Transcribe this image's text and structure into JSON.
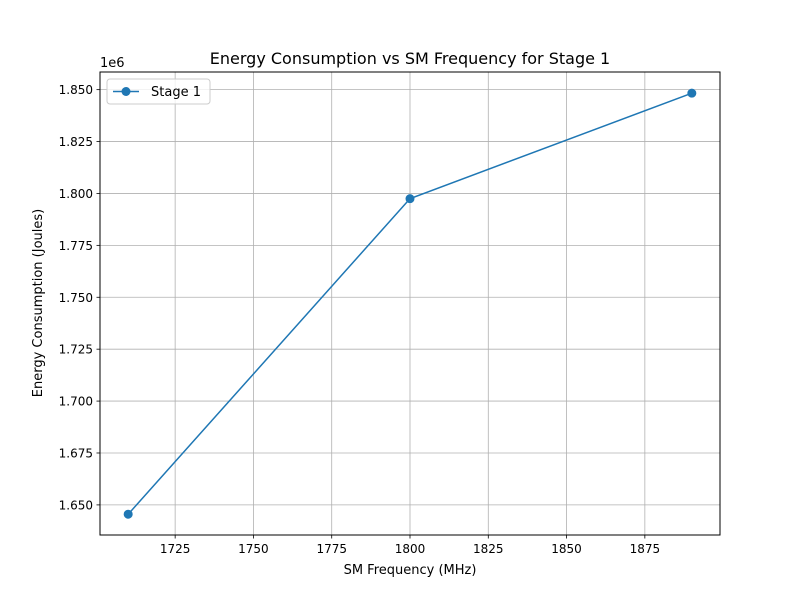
{
  "chart_data": {
    "type": "line",
    "title": "Energy Consumption vs SM Frequency for Stage 1",
    "xlabel": "SM Frequency (MHz)",
    "ylabel": "Energy Consumption (Joules)",
    "y_offset_label": "1e6",
    "y_multiplier": 1000000,
    "xlim": [
      1701,
      1899
    ],
    "ylim": [
      1.6355,
      1.8585
    ],
    "x_ticks": [
      1725,
      1750,
      1775,
      1800,
      1825,
      1850,
      1875
    ],
    "x_tick_labels": [
      "1725",
      "1750",
      "1775",
      "1800",
      "1825",
      "1850",
      "1875"
    ],
    "y_ticks": [
      1.65,
      1.675,
      1.7,
      1.725,
      1.75,
      1.775,
      1.8,
      1.825,
      1.85
    ],
    "y_tick_labels": [
      "1.650",
      "1.675",
      "1.700",
      "1.725",
      "1.750",
      "1.775",
      "1.800",
      "1.825",
      "1.850"
    ],
    "grid": true,
    "legend_position": "top-left",
    "series": [
      {
        "name": "Stage 1",
        "color": "#1f77b4",
        "marker": "circle",
        "x": [
          1710,
          1800,
          1890
        ],
        "y": [
          1.6455,
          1.7975,
          1.8483
        ]
      }
    ]
  }
}
